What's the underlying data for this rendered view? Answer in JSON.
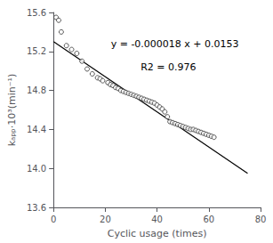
{
  "chart_data": {
    "type": "scatter",
    "xlabel": "Cyclic usage (times)",
    "ylabel": "kₐₚₚ·10³(min⁻¹)",
    "annotations": [
      "y = -0.000018 x + 0.0153",
      "R2 = 0.976"
    ],
    "xlim": [
      0,
      80
    ],
    "ylim": [
      13.6,
      15.6
    ],
    "xticks": [
      0,
      20,
      40,
      60,
      80
    ],
    "yticks": [
      13.6,
      {
        "value": 14.0,
        "label": "14.0"
      },
      14.4,
      14.8,
      15.2,
      15.6
    ],
    "grid": false,
    "series": [
      {
        "type": "scatter",
        "color": "#333333",
        "marker": "hollow circle",
        "x": [
          1,
          2,
          3,
          5,
          7,
          9,
          11,
          13,
          15,
          17,
          18,
          19,
          21,
          22,
          23,
          24,
          25,
          26,
          27,
          28,
          29,
          30,
          31,
          32,
          33,
          34,
          35,
          36,
          37,
          38,
          39,
          40,
          41,
          42,
          43,
          44,
          45,
          46,
          47,
          48,
          49,
          50,
          51,
          52,
          53,
          54,
          55,
          56,
          57,
          58,
          59,
          60,
          61,
          62
        ],
        "values": [
          15.55,
          15.52,
          15.4,
          15.26,
          15.22,
          15.18,
          15.1,
          15.02,
          14.97,
          14.93,
          14.92,
          14.9,
          14.88,
          14.86,
          14.85,
          14.83,
          14.82,
          14.8,
          14.79,
          14.78,
          14.77,
          14.76,
          14.75,
          14.74,
          14.73,
          14.72,
          14.71,
          14.7,
          14.69,
          14.68,
          14.67,
          14.65,
          14.63,
          14.61,
          14.58,
          14.53,
          14.48,
          14.47,
          14.46,
          14.45,
          14.44,
          14.43,
          14.42,
          14.41,
          14.4,
          14.4,
          14.39,
          14.38,
          14.37,
          14.36,
          14.35,
          14.34,
          14.33,
          14.32
        ]
      },
      {
        "type": "line",
        "color": "black",
        "x": [
          0,
          75
        ],
        "values": [
          15.3,
          13.95
        ]
      }
    ]
  }
}
